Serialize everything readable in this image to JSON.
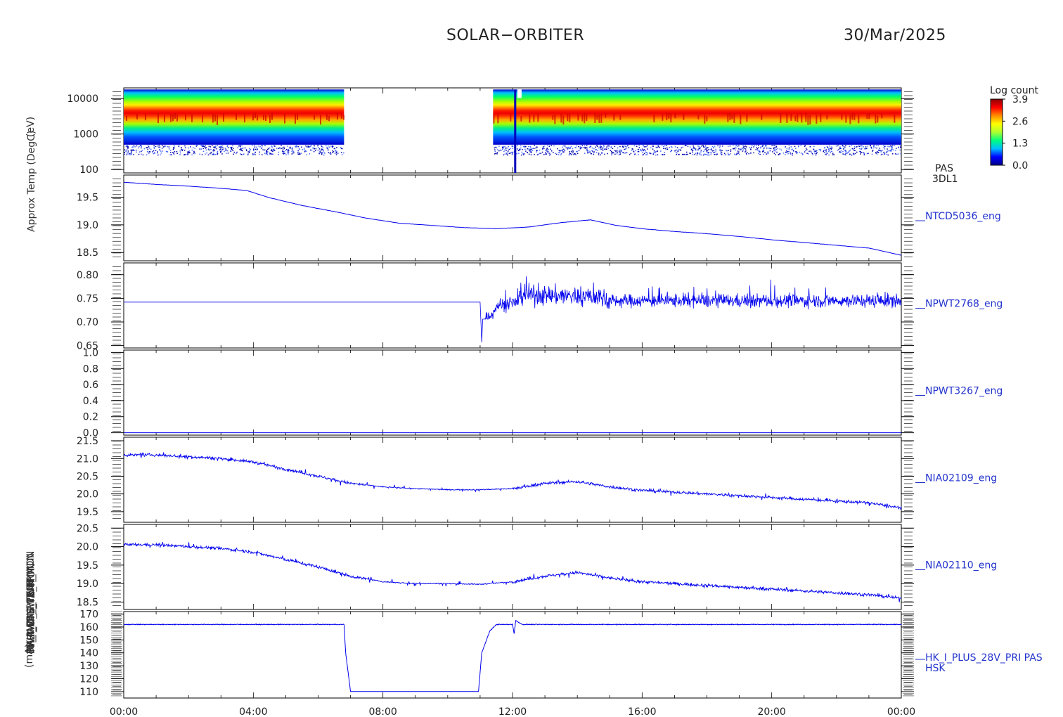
{
  "header": {
    "mission": "SOLAR−ORBITER",
    "date": "30/Mar/2025"
  },
  "colorbar": {
    "label": "Log count",
    "ticks": [
      "3.9",
      "2.6",
      "1.3",
      "0.0"
    ],
    "colors": [
      "#00008b",
      "#0000ff",
      "#00bfff",
      "#00ff7f",
      "#adff2f",
      "#ffff00",
      "#ff8c00",
      "#ff0000",
      "#8b0000"
    ]
  },
  "y_axis_labels": [
    "(eV)",
    "Approx Temp (DegC)",
    "SWA_EAS_TEMP",
    "PWT_CTL_TEMP",
    "FP_RWB_PPWT_MON",
    "THERM_SWA_MON",
    "HK_IMON_PRIM_MON",
    "(mA)"
  ],
  "chart_data": {
    "type": "line",
    "x_axis": {
      "label": "",
      "ticks": [
        "00:00",
        "04:00",
        "08:00",
        "12:00",
        "16:00",
        "20:00",
        "00:00"
      ],
      "range_hours": [
        0,
        24
      ]
    },
    "panels": [
      {
        "name": "PAS 3DL1",
        "label_lines": [
          "PAS",
          "3DL1"
        ],
        "type": "heatmap",
        "yscale": "log",
        "yticks": [
          "10000",
          "1000",
          "100"
        ],
        "ylim": [
          80,
          20000
        ],
        "peak_energy_ev": 2500,
        "data_gap_hours": [
          6.8,
          11.4
        ],
        "colorbar": "Log count"
      },
      {
        "name": "NTCD5036_eng",
        "type": "line",
        "yticks": [
          "19.5",
          "19.0",
          "18.5"
        ],
        "ylim": [
          18.35,
          19.9
        ],
        "x_hours": [
          0,
          1,
          2,
          3,
          3.8,
          4.5,
          5.5,
          6.5,
          7.5,
          8.5,
          9.5,
          10.5,
          11.5,
          12.5,
          13.5,
          14.4,
          15.2,
          16,
          17,
          18,
          19,
          20,
          21,
          22,
          23,
          24
        ],
        "values": [
          19.77,
          19.73,
          19.7,
          19.66,
          19.62,
          19.49,
          19.35,
          19.24,
          19.12,
          19.03,
          18.99,
          18.95,
          18.93,
          18.96,
          19.04,
          19.09,
          18.99,
          18.93,
          18.88,
          18.84,
          18.79,
          18.73,
          18.68,
          18.63,
          18.58,
          18.45
        ]
      },
      {
        "name": "NPWT2768_eng",
        "type": "line",
        "yticks": [
          "0.80",
          "0.75",
          "0.70",
          "0.65"
        ],
        "ylim": [
          0.645,
          0.825
        ],
        "flat_value": 0.742,
        "flat_until_hours": 11.0,
        "dip_value": 0.657,
        "noisy_mean": 0.745,
        "noisy_peak_hours": 13.5
      },
      {
        "name": "NPWT3267_eng",
        "type": "line",
        "yticks": [
          "1.0",
          "0.8",
          "0.6",
          "0.4",
          "0.2",
          "0.0"
        ],
        "ylim": [
          -0.03,
          1.03
        ],
        "values_constant": 0.0
      },
      {
        "name": "NIA02109_eng",
        "type": "line",
        "yticks": [
          "21.5",
          "21.0",
          "20.5",
          "20.0",
          "19.5"
        ],
        "ylim": [
          19.2,
          21.6
        ],
        "x_hours": [
          0,
          1,
          2,
          3,
          4,
          5,
          6,
          7,
          8,
          9,
          10,
          11,
          12,
          13,
          14,
          15,
          16,
          17,
          18,
          19,
          20,
          21,
          22,
          23,
          24
        ],
        "values": [
          21.1,
          21.1,
          21.05,
          21.0,
          20.9,
          20.7,
          20.5,
          20.3,
          20.2,
          20.15,
          20.12,
          20.12,
          20.15,
          20.3,
          20.35,
          20.2,
          20.1,
          20.05,
          20.0,
          19.95,
          19.9,
          19.85,
          19.8,
          19.75,
          19.6
        ]
      },
      {
        "name": "NIA02110_eng",
        "type": "line",
        "yticks": [
          "20.5",
          "20.0",
          "19.5",
          "19.0",
          "18.5"
        ],
        "ylim": [
          18.3,
          20.6
        ],
        "x_hours": [
          0,
          1,
          2,
          3,
          4,
          5,
          6,
          7,
          8,
          9,
          10,
          11,
          12,
          13,
          14,
          15,
          16,
          17,
          18,
          19,
          20,
          21,
          22,
          23,
          24
        ],
        "values": [
          20.05,
          20.05,
          20.0,
          19.95,
          19.85,
          19.65,
          19.45,
          19.2,
          19.05,
          19.0,
          19.0,
          18.98,
          19.05,
          19.2,
          19.3,
          19.15,
          19.05,
          19.0,
          18.95,
          18.9,
          18.85,
          18.8,
          18.75,
          18.7,
          18.6
        ]
      },
      {
        "name": "HK_I_PLUS_28V_PRI PAS HSK",
        "label_lines": [
          "HK_I_PLUS_28V_PRI PAS",
          "HSK"
        ],
        "type": "line",
        "yticks": [
          "170",
          "160",
          "150",
          "140",
          "130",
          "120",
          "110"
        ],
        "ylim": [
          105,
          172
        ],
        "x_hours": [
          0,
          6.8,
          6.85,
          7.0,
          10.95,
          11.05,
          11.3,
          11.5,
          12.0,
          12.05,
          12.1,
          12.3,
          24
        ],
        "values": [
          162,
          162,
          140,
          110,
          110,
          140,
          157,
          162,
          162,
          155,
          165,
          162,
          162
        ]
      }
    ]
  }
}
